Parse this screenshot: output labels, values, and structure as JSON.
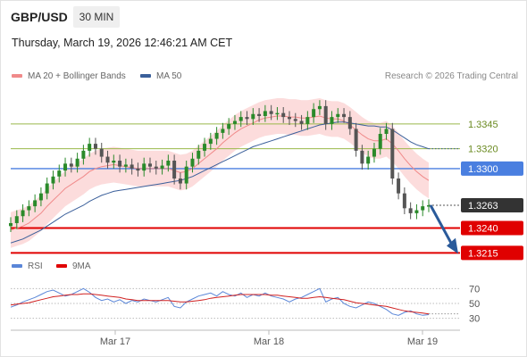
{
  "header": {
    "pair": "GBP/USD",
    "timeframe": "30 MIN",
    "datetime": "Thursday, March 19, 2026 12:46:21 AM CET"
  },
  "legend": {
    "ma20": "MA 20 + Bollinger Bands",
    "ma50": "MA 50",
    "credit": "Research © 2026 Trading Central",
    "rsi": "RSI",
    "ma9": "9MA"
  },
  "colors": {
    "ma20": "#f08a8a",
    "ma50": "#3a5f9a",
    "band": "#fbd6d6",
    "up": "#2a8a2a",
    "down": "#555555",
    "support": "#e00000",
    "resistance_green": "#9ab84a",
    "pivot": "#4a7fe0",
    "rsi": "#5a86d8",
    "ma9": "#d02020"
  },
  "chart_data": {
    "type": "line",
    "ylim": [
      1.32,
      1.338
    ],
    "levels": [
      {
        "value": 1.3345,
        "label": "1.3345",
        "kind": "resistance"
      },
      {
        "value": 1.332,
        "label": "1.3320",
        "kind": "resistance"
      },
      {
        "value": 1.33,
        "label": "1.3300",
        "kind": "pivot"
      },
      {
        "value": 1.3263,
        "label": "1.3263",
        "kind": "last"
      },
      {
        "value": 1.324,
        "label": "1.3240",
        "kind": "support"
      },
      {
        "value": 1.3215,
        "label": "1.3215",
        "kind": "support"
      }
    ],
    "x_labels": [
      "Mar 17",
      "Mar 18",
      "Mar 19"
    ],
    "price": [
      1.3245,
      1.3252,
      1.3258,
      1.3262,
      1.3268,
      1.3275,
      1.3285,
      1.3292,
      1.3298,
      1.3305,
      1.3302,
      1.331,
      1.3318,
      1.3325,
      1.332,
      1.3312,
      1.3306,
      1.3308,
      1.3302,
      1.3304,
      1.33,
      1.3298,
      1.3305,
      1.3302,
      1.33,
      1.3303,
      1.3308,
      1.329,
      1.3285,
      1.3302,
      1.331,
      1.3318,
      1.3325,
      1.333,
      1.3336,
      1.334,
      1.3345,
      1.3348,
      1.3352,
      1.335,
      1.3355,
      1.3353,
      1.3358,
      1.3355,
      1.3356,
      1.3352,
      1.335,
      1.3348,
      1.3345,
      1.3352,
      1.336,
      1.3363,
      1.3345,
      1.3352,
      1.3355,
      1.3352,
      1.334,
      1.3318,
      1.3305,
      1.3312,
      1.332,
      1.3335,
      1.334,
      1.329,
      1.3275,
      1.326,
      1.3255,
      1.3258,
      1.3262,
      1.3263
    ],
    "ma20": [
      1.3238,
      1.324,
      1.3242,
      1.3245,
      1.325,
      1.3255,
      1.3262,
      1.3268,
      1.3274,
      1.328,
      1.3284,
      1.3288,
      1.3292,
      1.3297,
      1.33,
      1.3302,
      1.3303,
      1.3304,
      1.3303,
      1.3302,
      1.3301,
      1.33,
      1.33,
      1.33,
      1.33,
      1.33,
      1.33,
      1.3298,
      1.3296,
      1.3297,
      1.33,
      1.3305,
      1.331,
      1.3315,
      1.332,
      1.3326,
      1.3331,
      1.3336,
      1.334,
      1.3343,
      1.3346,
      1.3349,
      1.3351,
      1.3352,
      1.3353,
      1.3353,
      1.3352,
      1.3352,
      1.3351,
      1.3351,
      1.3352,
      1.3353,
      1.3351,
      1.335,
      1.335,
      1.3348,
      1.3344,
      1.3339,
      1.3334,
      1.333,
      1.3328,
      1.3328,
      1.333,
      1.3325,
      1.3318,
      1.331,
      1.3303,
      1.3297,
      1.3292,
      1.3288
    ],
    "ma50": [
      1.3225,
      1.3227,
      1.3229,
      1.3232,
      1.3235,
      1.3238,
      1.3242,
      1.3246,
      1.325,
      1.3254,
      1.3257,
      1.326,
      1.3263,
      1.3267,
      1.327,
      1.3273,
      1.3275,
      1.3277,
      1.3278,
      1.3279,
      1.328,
      1.3281,
      1.3282,
      1.3283,
      1.3284,
      1.3285,
      1.3286,
      1.3287,
      1.3288,
      1.329,
      1.3292,
      1.3295,
      1.3298,
      1.3301,
      1.3304,
      1.3307,
      1.331,
      1.3313,
      1.3316,
      1.3319,
      1.3322,
      1.3324,
      1.3326,
      1.3328,
      1.333,
      1.3332,
      1.3334,
      1.3336,
      1.3338,
      1.334,
      1.3342,
      1.3344,
      1.3345,
      1.3346,
      1.3347,
      1.3347,
      1.3346,
      1.3345,
      1.3344,
      1.3343,
      1.3343,
      1.3342,
      1.3342,
      1.3339,
      1.3335,
      1.3331,
      1.3327,
      1.3324,
      1.3322,
      1.332
    ],
    "rsi_levels": [
      70,
      50,
      30
    ],
    "rsi_ylim": [
      20,
      80
    ],
    "rsi": [
      45,
      48,
      52,
      55,
      58,
      62,
      66,
      68,
      64,
      60,
      62,
      66,
      70,
      65,
      58,
      54,
      56,
      52,
      55,
      50,
      54,
      52,
      56,
      54,
      52,
      55,
      58,
      46,
      44,
      52,
      56,
      60,
      62,
      64,
      60,
      66,
      62,
      60,
      64,
      58,
      62,
      60,
      64,
      60,
      58,
      56,
      52,
      56,
      58,
      62,
      66,
      70,
      52,
      56,
      58,
      50,
      46,
      44,
      48,
      52,
      50,
      46,
      42,
      36,
      34,
      38,
      40,
      36,
      34,
      35
    ],
    "ma9": [
      48,
      49,
      50,
      51,
      53,
      55,
      57,
      59,
      60,
      61,
      62,
      62,
      63,
      63,
      62,
      61,
      60,
      59,
      58,
      56,
      55,
      54,
      54,
      54,
      54,
      54,
      54,
      53,
      52,
      52,
      53,
      54,
      55,
      57,
      58,
      59,
      60,
      61,
      62,
      62,
      62,
      62,
      62,
      61,
      61,
      60,
      59,
      58,
      57,
      57,
      58,
      59,
      58,
      57,
      56,
      55,
      53,
      51,
      50,
      49,
      48,
      47,
      46,
      44,
      42,
      40,
      39,
      38,
      37,
      36
    ]
  }
}
